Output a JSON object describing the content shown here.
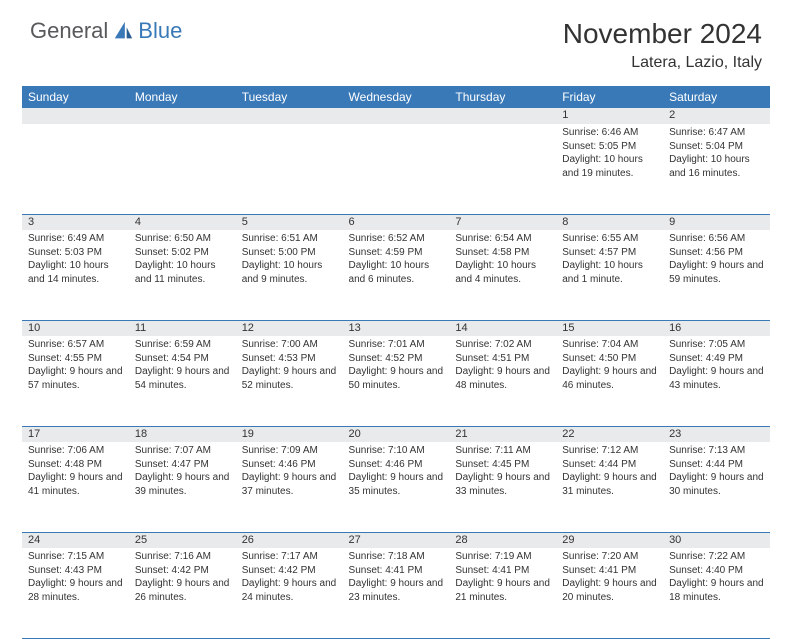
{
  "brand": {
    "part1": "General",
    "part2": "Blue"
  },
  "title": "November 2024",
  "location": "Latera, Lazio, Italy",
  "colors": {
    "header_bg": "#3a79b8",
    "daynum_bg": "#e9eaeb",
    "border": "#3a79b8",
    "text": "#333333",
    "logo_gray": "#58595b",
    "logo_blue": "#3a79b8"
  },
  "weekdays": [
    "Sunday",
    "Monday",
    "Tuesday",
    "Wednesday",
    "Thursday",
    "Friday",
    "Saturday"
  ],
  "weeks": [
    [
      {
        "n": "",
        "sr": "",
        "ss": "",
        "dl": ""
      },
      {
        "n": "",
        "sr": "",
        "ss": "",
        "dl": ""
      },
      {
        "n": "",
        "sr": "",
        "ss": "",
        "dl": ""
      },
      {
        "n": "",
        "sr": "",
        "ss": "",
        "dl": ""
      },
      {
        "n": "",
        "sr": "",
        "ss": "",
        "dl": ""
      },
      {
        "n": "1",
        "sr": "Sunrise: 6:46 AM",
        "ss": "Sunset: 5:05 PM",
        "dl": "Daylight: 10 hours and 19 minutes."
      },
      {
        "n": "2",
        "sr": "Sunrise: 6:47 AM",
        "ss": "Sunset: 5:04 PM",
        "dl": "Daylight: 10 hours and 16 minutes."
      }
    ],
    [
      {
        "n": "3",
        "sr": "Sunrise: 6:49 AM",
        "ss": "Sunset: 5:03 PM",
        "dl": "Daylight: 10 hours and 14 minutes."
      },
      {
        "n": "4",
        "sr": "Sunrise: 6:50 AM",
        "ss": "Sunset: 5:02 PM",
        "dl": "Daylight: 10 hours and 11 minutes."
      },
      {
        "n": "5",
        "sr": "Sunrise: 6:51 AM",
        "ss": "Sunset: 5:00 PM",
        "dl": "Daylight: 10 hours and 9 minutes."
      },
      {
        "n": "6",
        "sr": "Sunrise: 6:52 AM",
        "ss": "Sunset: 4:59 PM",
        "dl": "Daylight: 10 hours and 6 minutes."
      },
      {
        "n": "7",
        "sr": "Sunrise: 6:54 AM",
        "ss": "Sunset: 4:58 PM",
        "dl": "Daylight: 10 hours and 4 minutes."
      },
      {
        "n": "8",
        "sr": "Sunrise: 6:55 AM",
        "ss": "Sunset: 4:57 PM",
        "dl": "Daylight: 10 hours and 1 minute."
      },
      {
        "n": "9",
        "sr": "Sunrise: 6:56 AM",
        "ss": "Sunset: 4:56 PM",
        "dl": "Daylight: 9 hours and 59 minutes."
      }
    ],
    [
      {
        "n": "10",
        "sr": "Sunrise: 6:57 AM",
        "ss": "Sunset: 4:55 PM",
        "dl": "Daylight: 9 hours and 57 minutes."
      },
      {
        "n": "11",
        "sr": "Sunrise: 6:59 AM",
        "ss": "Sunset: 4:54 PM",
        "dl": "Daylight: 9 hours and 54 minutes."
      },
      {
        "n": "12",
        "sr": "Sunrise: 7:00 AM",
        "ss": "Sunset: 4:53 PM",
        "dl": "Daylight: 9 hours and 52 minutes."
      },
      {
        "n": "13",
        "sr": "Sunrise: 7:01 AM",
        "ss": "Sunset: 4:52 PM",
        "dl": "Daylight: 9 hours and 50 minutes."
      },
      {
        "n": "14",
        "sr": "Sunrise: 7:02 AM",
        "ss": "Sunset: 4:51 PM",
        "dl": "Daylight: 9 hours and 48 minutes."
      },
      {
        "n": "15",
        "sr": "Sunrise: 7:04 AM",
        "ss": "Sunset: 4:50 PM",
        "dl": "Daylight: 9 hours and 46 minutes."
      },
      {
        "n": "16",
        "sr": "Sunrise: 7:05 AM",
        "ss": "Sunset: 4:49 PM",
        "dl": "Daylight: 9 hours and 43 minutes."
      }
    ],
    [
      {
        "n": "17",
        "sr": "Sunrise: 7:06 AM",
        "ss": "Sunset: 4:48 PM",
        "dl": "Daylight: 9 hours and 41 minutes."
      },
      {
        "n": "18",
        "sr": "Sunrise: 7:07 AM",
        "ss": "Sunset: 4:47 PM",
        "dl": "Daylight: 9 hours and 39 minutes."
      },
      {
        "n": "19",
        "sr": "Sunrise: 7:09 AM",
        "ss": "Sunset: 4:46 PM",
        "dl": "Daylight: 9 hours and 37 minutes."
      },
      {
        "n": "20",
        "sr": "Sunrise: 7:10 AM",
        "ss": "Sunset: 4:46 PM",
        "dl": "Daylight: 9 hours and 35 minutes."
      },
      {
        "n": "21",
        "sr": "Sunrise: 7:11 AM",
        "ss": "Sunset: 4:45 PM",
        "dl": "Daylight: 9 hours and 33 minutes."
      },
      {
        "n": "22",
        "sr": "Sunrise: 7:12 AM",
        "ss": "Sunset: 4:44 PM",
        "dl": "Daylight: 9 hours and 31 minutes."
      },
      {
        "n": "23",
        "sr": "Sunrise: 7:13 AM",
        "ss": "Sunset: 4:44 PM",
        "dl": "Daylight: 9 hours and 30 minutes."
      }
    ],
    [
      {
        "n": "24",
        "sr": "Sunrise: 7:15 AM",
        "ss": "Sunset: 4:43 PM",
        "dl": "Daylight: 9 hours and 28 minutes."
      },
      {
        "n": "25",
        "sr": "Sunrise: 7:16 AM",
        "ss": "Sunset: 4:42 PM",
        "dl": "Daylight: 9 hours and 26 minutes."
      },
      {
        "n": "26",
        "sr": "Sunrise: 7:17 AM",
        "ss": "Sunset: 4:42 PM",
        "dl": "Daylight: 9 hours and 24 minutes."
      },
      {
        "n": "27",
        "sr": "Sunrise: 7:18 AM",
        "ss": "Sunset: 4:41 PM",
        "dl": "Daylight: 9 hours and 23 minutes."
      },
      {
        "n": "28",
        "sr": "Sunrise: 7:19 AM",
        "ss": "Sunset: 4:41 PM",
        "dl": "Daylight: 9 hours and 21 minutes."
      },
      {
        "n": "29",
        "sr": "Sunrise: 7:20 AM",
        "ss": "Sunset: 4:41 PM",
        "dl": "Daylight: 9 hours and 20 minutes."
      },
      {
        "n": "30",
        "sr": "Sunrise: 7:22 AM",
        "ss": "Sunset: 4:40 PM",
        "dl": "Daylight: 9 hours and 18 minutes."
      }
    ]
  ]
}
